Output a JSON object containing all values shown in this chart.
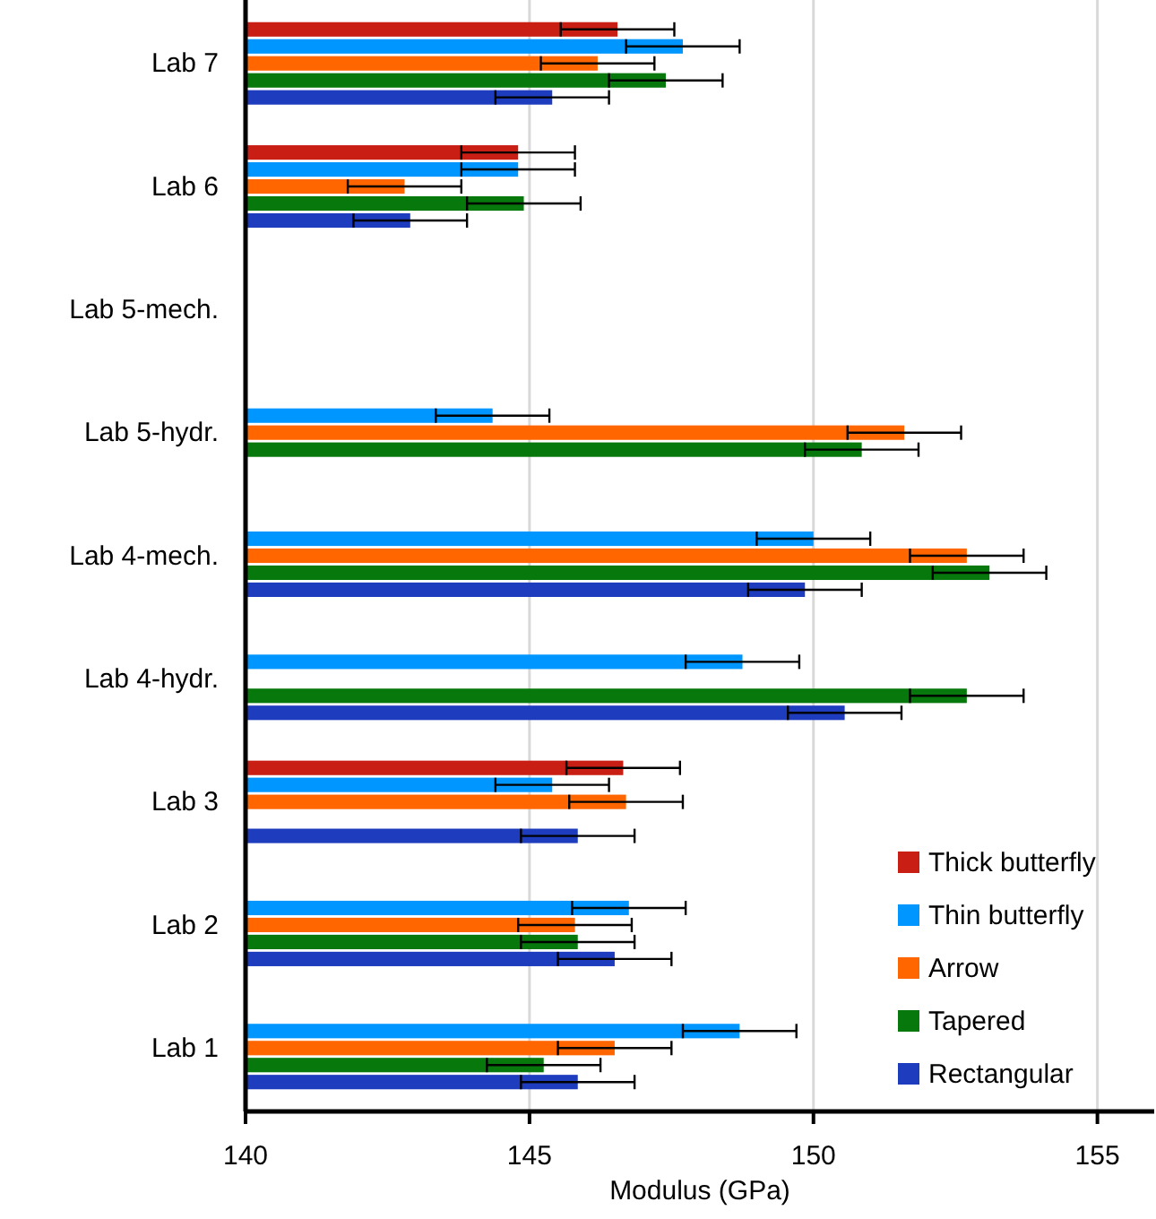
{
  "chart_data": {
    "type": "bar",
    "orientation": "horizontal",
    "xlabel": "Modulus (GPa)",
    "categories": [
      "Lab 7",
      "Lab 6",
      "Lab 5-mech.",
      "Lab 5-hydr.",
      "Lab 4-mech.",
      "Lab 4-hydr.",
      "Lab 3",
      "Lab 2",
      "Lab 1"
    ],
    "series": [
      {
        "name": "Thick butterfly",
        "color": "#c81e14",
        "values": [
          146.55,
          144.8,
          null,
          null,
          null,
          null,
          146.65,
          null,
          null
        ],
        "errors": [
          1,
          1,
          null,
          null,
          null,
          null,
          1,
          null,
          null
        ]
      },
      {
        "name": "Thin butterfly",
        "color": "#0096ff",
        "values": [
          147.7,
          144.8,
          null,
          144.35,
          150.0,
          148.75,
          145.4,
          146.75,
          148.7
        ],
        "errors": [
          1,
          1,
          null,
          1,
          1,
          1,
          1,
          1,
          1
        ]
      },
      {
        "name": "Arrow",
        "color": "#ff6600",
        "values": [
          146.2,
          142.8,
          null,
          151.6,
          152.7,
          null,
          146.7,
          145.8,
          146.5
        ],
        "errors": [
          1,
          1,
          null,
          1,
          1,
          null,
          1,
          1,
          1
        ]
      },
      {
        "name": "Tapered",
        "color": "#07780b",
        "values": [
          147.4,
          144.9,
          null,
          150.85,
          153.1,
          152.7,
          null,
          145.85,
          145.25
        ],
        "errors": [
          1,
          1,
          null,
          1,
          1,
          1,
          null,
          1,
          1
        ]
      },
      {
        "name": "Rectangular",
        "color": "#1e3cbe",
        "values": [
          145.4,
          142.9,
          null,
          null,
          149.85,
          150.55,
          145.85,
          146.5,
          145.85
        ],
        "errors": [
          1,
          1,
          null,
          null,
          1,
          1,
          1,
          1,
          1
        ]
      }
    ],
    "xlim": [
      140,
      156
    ],
    "xticks": [
      140,
      145,
      150,
      155
    ],
    "grid": "x",
    "legend": "bottom right"
  }
}
